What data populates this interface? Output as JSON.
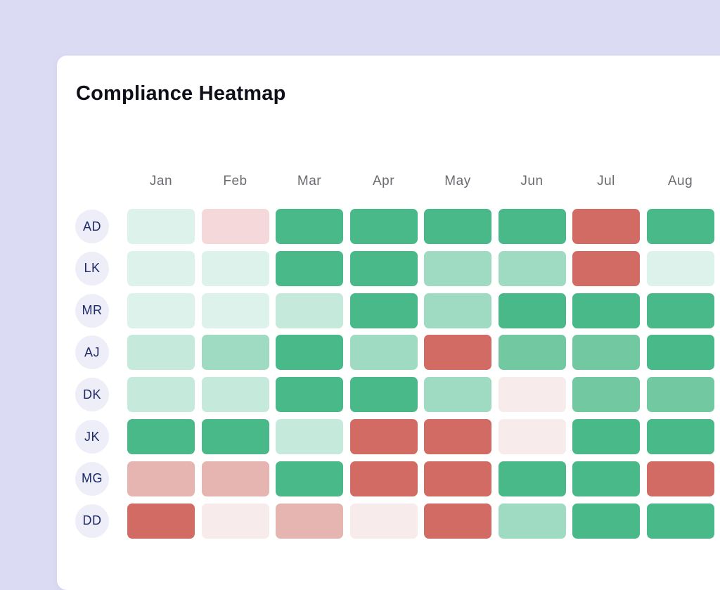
{
  "chart_data": {
    "type": "heatmap",
    "title": "Compliance Heatmap",
    "columns": [
      "Jan",
      "Feb",
      "Mar",
      "Apr",
      "May",
      "Jun",
      "Jul",
      "Aug"
    ],
    "rows": [
      "AD",
      "LK",
      "MR",
      "AJ",
      "DK",
      "JK",
      "MG",
      "DD"
    ],
    "scale": {
      "-3": "#d26b63",
      "-2": "#e7b5b1",
      "-1": "#f8ebeb",
      "-0.5": "#f5d9da",
      "1": "#ddf2ea",
      "2": "#c5eadb",
      "3": "#9fdbc2",
      "4": "#72c9a1",
      "5": "#4ab98a"
    },
    "values": [
      [
        1,
        -0.5,
        5,
        5,
        5,
        5,
        -3,
        5
      ],
      [
        1,
        1,
        5,
        5,
        3,
        3,
        -3,
        1
      ],
      [
        1,
        1,
        2,
        5,
        3,
        5,
        5,
        5
      ],
      [
        2,
        3,
        5,
        3,
        -3,
        4,
        4,
        5
      ],
      [
        2,
        2,
        5,
        5,
        3,
        -1,
        4,
        4
      ],
      [
        5,
        5,
        2,
        -3,
        -3,
        -1,
        5,
        5
      ],
      [
        -2,
        -2,
        5,
        -3,
        -3,
        5,
        5,
        -3
      ],
      [
        -3,
        -1,
        -2,
        -1,
        -3,
        3,
        5,
        5
      ]
    ]
  }
}
